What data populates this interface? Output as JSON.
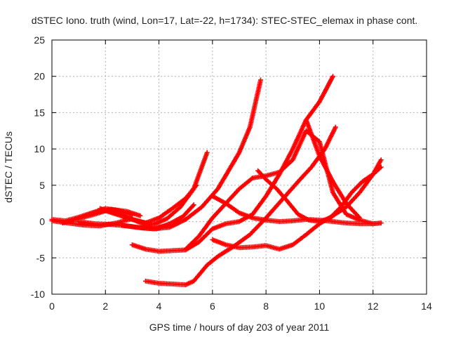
{
  "chart_data": {
    "type": "scatter",
    "title": "dSTEC Iono. truth (wind, Lon=17, Lat=-22, h=1734): STEC-STEC_elemax in phase cont.",
    "xlabel": "GPS time / hours of day 203 of year 2011",
    "ylabel": "dSTEC  / TECUs",
    "xlim": [
      0,
      14
    ],
    "ylim": [
      -10,
      25
    ],
    "xticks": [
      0,
      2,
      4,
      6,
      8,
      10,
      12,
      14
    ],
    "yticks": [
      -10,
      -5,
      0,
      5,
      10,
      15,
      20,
      25
    ],
    "x_tick_labels": [
      "0",
      "2",
      "4",
      "6",
      "8",
      "10",
      "12",
      "14"
    ],
    "y_tick_labels": [
      "-10",
      "-5",
      "0",
      "5",
      "10",
      "15",
      "20",
      "25"
    ],
    "grid": true,
    "marker": "plus",
    "color": "#ff0000",
    "series": [
      {
        "x": [
          0,
          0.5,
          1.0,
          1.5,
          2.0,
          2.5,
          3.0
        ],
        "y": [
          0.3,
          0.1,
          0.6,
          1.2,
          1.8,
          1.5,
          0.9
        ]
      },
      {
        "x": [
          0,
          0.6,
          1.2,
          1.8,
          2.4,
          3.0
        ],
        "y": [
          0.1,
          -0.2,
          -0.5,
          -0.6,
          -0.2,
          0.4
        ]
      },
      {
        "x": [
          0.4,
          1.0,
          1.6,
          2.2,
          2.8,
          3.3
        ],
        "y": [
          -0.2,
          0.4,
          1.0,
          1.7,
          1.4,
          0.8
        ]
      },
      {
        "x": [
          1.5,
          2.0,
          2.5,
          3.0,
          3.5,
          4.0,
          4.5,
          5.0,
          5.4
        ],
        "y": [
          1.2,
          1.5,
          0.9,
          0.3,
          -0.2,
          0.5,
          1.8,
          3.2,
          5.0
        ]
      },
      {
        "x": [
          1.8,
          2.3,
          2.8,
          3.3,
          3.8,
          4.3,
          4.8,
          5.3,
          5.8
        ],
        "y": [
          1.8,
          1.2,
          0.5,
          0.0,
          -0.4,
          0.4,
          2.0,
          4.5,
          9.5
        ]
      },
      {
        "x": [
          1.0,
          1.6,
          2.2,
          2.8,
          3.4,
          3.9,
          4.4,
          4.9,
          5.3
        ],
        "y": [
          0.0,
          -0.3,
          -0.4,
          -0.6,
          -0.9,
          -1.0,
          -0.3,
          0.7,
          2.3
        ]
      },
      {
        "x": [
          2.0,
          2.6,
          3.2,
          3.8,
          4.4,
          4.8
        ],
        "y": [
          1.5,
          1.0,
          0.0,
          -0.9,
          -0.5,
          0.2
        ]
      },
      {
        "x": [
          2.6,
          3.2,
          3.8,
          4.4,
          5.0,
          5.6,
          6.2,
          6.6,
          7.0,
          7.4,
          7.8
        ],
        "y": [
          -0.5,
          -0.8,
          -1.0,
          -0.8,
          0.3,
          2.0,
          4.5,
          7.0,
          9.5,
          13.0,
          19.5
        ]
      },
      {
        "x": [
          3.0,
          3.5,
          4.0,
          4.5,
          5.0,
          5.5,
          6.0,
          6.5,
          7.0,
          7.5,
          8.0,
          8.5,
          9.0,
          9.5,
          10.0,
          10.5
        ],
        "y": [
          -3.2,
          -3.8,
          -4.1,
          -4.0,
          -3.9,
          -2.8,
          -1.0,
          -0.3,
          0.0,
          1.0,
          3.5,
          6.5,
          10.0,
          14.0,
          16.5,
          20.0
        ]
      },
      {
        "x": [
          3.5,
          4.0,
          4.5,
          5.0,
          5.3,
          5.8,
          6.2,
          6.8,
          7.4,
          8.0,
          8.6,
          9.2,
          9.7,
          10.2,
          10.6
        ],
        "y": [
          -8.2,
          -8.5,
          -8.6,
          -8.7,
          -8.2,
          -6.0,
          -4.8,
          -3.4,
          -1.8,
          0.5,
          3.0,
          5.5,
          7.5,
          10.0,
          13.0
        ]
      },
      {
        "x": [
          5.0,
          5.5,
          6.0,
          6.5,
          7.0,
          7.5,
          8.0,
          8.5,
          9.0,
          9.5,
          10.0,
          10.5,
          11.0,
          11.5,
          12.0,
          12.3
        ],
        "y": [
          -3.8,
          -2.0,
          0.5,
          2.5,
          4.5,
          6.0,
          6.3,
          6.8,
          8.5,
          12.5,
          11.0,
          4.0,
          1.0,
          0.2,
          -0.3,
          -0.2
        ]
      },
      {
        "x": [
          6.0,
          6.5,
          7.0,
          7.5,
          8.0,
          8.5,
          9.0,
          9.5,
          10.0,
          10.5,
          11.0,
          11.5,
          12.0
        ],
        "y": [
          3.5,
          2.5,
          1.2,
          0.5,
          0.2,
          0.0,
          0.1,
          0.3,
          0.2,
          0.0,
          -0.2,
          -0.3,
          -0.3
        ]
      },
      {
        "x": [
          6.0,
          6.5,
          7.0,
          7.5,
          8.0,
          8.5,
          9.0,
          9.5,
          10.0,
          10.5,
          11.0,
          11.5,
          12.0,
          12.3
        ],
        "y": [
          -2.5,
          -3.2,
          -3.6,
          -3.5,
          -3.3,
          -3.8,
          -3.2,
          -1.8,
          -0.3,
          0.8,
          2.0,
          4.0,
          6.5,
          8.5
        ]
      },
      {
        "x": [
          7.7,
          8.0,
          8.4,
          8.8,
          9.2,
          9.6,
          10.0,
          10.4,
          10.8,
          11.2,
          11.6,
          12.0,
          12.3
        ],
        "y": [
          7.0,
          5.8,
          4.5,
          2.8,
          1.0,
          0.2,
          0.0,
          0.5,
          2.0,
          4.0,
          5.5,
          6.5,
          7.5
        ]
      },
      {
        "x": [
          9.5,
          10.0,
          10.5,
          11.0,
          11.5
        ],
        "y": [
          14.0,
          9.0,
          5.5,
          2.5,
          0.5
        ]
      }
    ]
  }
}
